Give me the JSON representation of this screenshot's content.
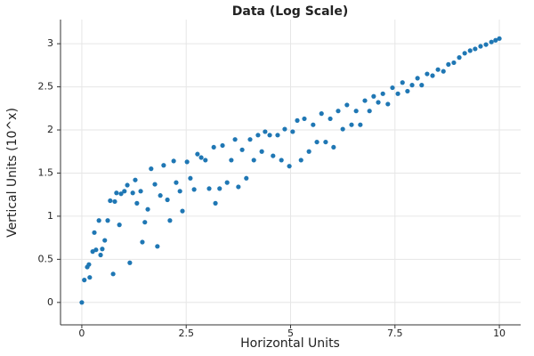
{
  "chart_data": {
    "type": "scatter",
    "title": "Data (Log Scale)",
    "xlabel": "Horizontal Units",
    "ylabel": "Vertical Units (10^x)",
    "xlim": [
      -0.51,
      10.51
    ],
    "ylim": [
      -0.26,
      3.28
    ],
    "xticks": [
      0,
      2.5,
      5,
      7.5,
      10
    ],
    "yticks": [
      0,
      0.5,
      1,
      1.5,
      2,
      2.5,
      3
    ],
    "grid": true,
    "series": [
      {
        "color": "#1f77b4",
        "x": [
          0,
          0.06,
          0.13,
          0.17,
          0.19,
          0.26,
          0.3,
          0.34,
          0.41,
          0.45,
          0.49,
          0.55,
          0.62,
          0.68,
          0.75,
          0.79,
          0.83,
          0.9,
          0.94,
          1.02,
          1.09,
          1.15,
          1.22,
          1.28,
          1.32,
          1.41,
          1.45,
          1.51,
          1.58,
          1.66,
          1.75,
          1.81,
          1.88,
          1.96,
          2.05,
          2.11,
          2.2,
          2.26,
          2.35,
          2.41,
          2.52,
          2.6,
          2.69,
          2.77,
          2.86,
          2.96,
          3.05,
          3.16,
          3.2,
          3.3,
          3.37,
          3.48,
          3.58,
          3.67,
          3.75,
          3.84,
          3.94,
          4.03,
          4.12,
          4.22,
          4.31,
          4.39,
          4.5,
          4.58,
          4.69,
          4.78,
          4.86,
          4.97,
          5.05,
          5.16,
          5.25,
          5.33,
          5.44,
          5.54,
          5.63,
          5.74,
          5.84,
          5.95,
          6.03,
          6.14,
          6.25,
          6.35,
          6.46,
          6.57,
          6.67,
          6.78,
          6.89,
          6.99,
          7.1,
          7.21,
          7.33,
          7.44,
          7.57,
          7.68,
          7.8,
          7.91,
          8.04,
          8.14,
          8.27,
          8.4,
          8.53,
          8.66,
          8.78,
          8.91,
          9.04,
          9.17,
          9.3,
          9.42,
          9.55,
          9.68,
          9.81,
          9.91,
          10
        ],
        "values": [
          0,
          0.26,
          0.41,
          0.44,
          0.29,
          0.59,
          0.81,
          0.61,
          0.95,
          0.55,
          0.62,
          0.72,
          0.95,
          1.18,
          0.33,
          1.17,
          1.27,
          0.9,
          1.26,
          1.29,
          1.36,
          0.46,
          1.27,
          1.42,
          1.15,
          1.29,
          0.7,
          0.93,
          1.08,
          1.55,
          1.37,
          0.65,
          1.24,
          1.59,
          1.19,
          0.95,
          1.64,
          1.39,
          1.29,
          1.06,
          1.63,
          1.44,
          1.31,
          1.72,
          1.68,
          1.65,
          1.32,
          1.8,
          1.15,
          1.32,
          1.82,
          1.39,
          1.65,
          1.89,
          1.34,
          1.77,
          1.44,
          1.89,
          1.65,
          1.94,
          1.75,
          1.98,
          1.94,
          1.7,
          1.94,
          1.65,
          2.01,
          1.58,
          1.98,
          2.11,
          1.65,
          2.13,
          1.75,
          2.06,
          1.86,
          2.19,
          1.86,
          2.13,
          1.8,
          2.22,
          2.01,
          2.29,
          2.06,
          2.22,
          2.06,
          2.34,
          2.22,
          2.39,
          2.32,
          2.42,
          2.3,
          2.49,
          2.42,
          2.55,
          2.45,
          2.52,
          2.6,
          2.52,
          2.65,
          2.63,
          2.7,
          2.68,
          2.76,
          2.78,
          2.84,
          2.89,
          2.92,
          2.94,
          2.97,
          2.99,
          3.02,
          3.04,
          3.06
        ]
      }
    ]
  }
}
